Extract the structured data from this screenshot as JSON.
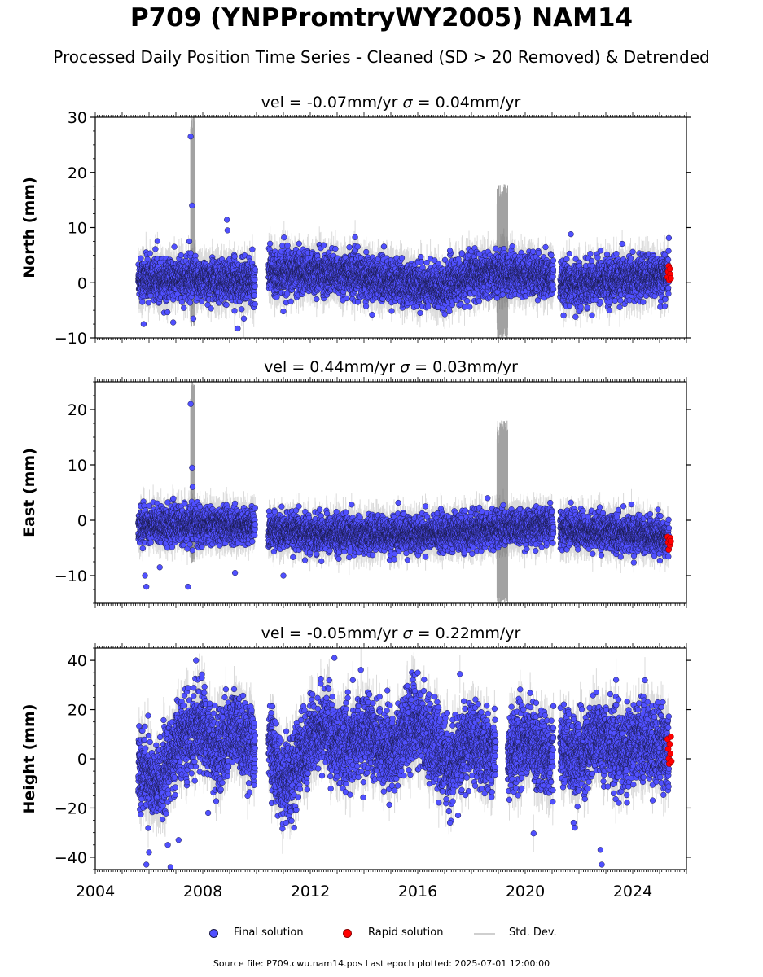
{
  "header": {
    "title": "P709 (YNPPromtryWY2005) NAM14",
    "subtitle": "Processed Daily Position Time Series - Cleaned (SD > 20 Removed) & Detrended"
  },
  "legend": {
    "final": "Final solution",
    "rapid": "Rapid solution",
    "std": "Std. Dev."
  },
  "footer": {
    "text": "Source file: P709.cwu.nam14.pos  Last epoch plotted: 2025-07-01 12:00:00"
  },
  "colors": {
    "final_fill": "#5050ff",
    "final_edge": "#1a1a4a",
    "rapid_fill": "#ff0000",
    "stddev": "#999999"
  },
  "chart_data": [
    {
      "type": "scatter",
      "component": "north",
      "title": "vel = -0.07mm/yr   σ = 0.04mm/yr",
      "vel_label": "vel = -0.07mm/yr",
      "sigma_label": "σ = 0.04mm/yr",
      "ylabel": "North (mm)",
      "ylim": [
        -10,
        30
      ],
      "yticks": [
        -10,
        0,
        10,
        20,
        30
      ],
      "xlim": [
        2004.0,
        2026.0
      ],
      "xticks": [
        2004,
        2008,
        2012,
        2016,
        2020,
        2024
      ],
      "show_xtick_labels": false,
      "segments": [
        [
          2005.6,
          2009.95
        ],
        [
          2010.45,
          2021.05
        ],
        [
          2021.3,
          2025.35
        ]
      ],
      "noise_sd": 1.8,
      "std_dev_typical": 2.5,
      "series": [
        {
          "name": "Final solution",
          "x": [
            2005.75,
            2005.8,
            2006.9,
            2007.5,
            2007.55,
            2007.6,
            2007.65,
            2008.9,
            2008.92,
            2009.3,
            2011.0,
            2012.5,
            2014.3,
            2017.2,
            2018.3,
            2018.9,
            2021.7,
            2022.0,
            2022.8,
            2024.0
          ],
          "y": [
            -3.5,
            -7.5,
            -7.2,
            7.5,
            26.5,
            14.0,
            -6.5,
            11.4,
            9.5,
            -8.3,
            -5.2,
            6.8,
            -5.8,
            5.8,
            5.2,
            6.2,
            8.8,
            -5.2,
            5.8,
            5.6
          ]
        },
        {
          "name": "Rapid solution",
          "x": [
            2025.3,
            2025.32,
            2025.34,
            2025.36,
            2025.38,
            2025.4,
            2025.42
          ],
          "y": [
            1.0,
            2.0,
            3.0,
            0.5,
            2.5,
            1.5,
            0.8
          ]
        }
      ],
      "trend": [
        [
          2005.6,
          0.8
        ],
        [
          2009.95,
          0.2
        ],
        [
          2010.45,
          2.2
        ],
        [
          2013.5,
          1.5
        ],
        [
          2016.0,
          -0.3
        ],
        [
          2017.0,
          -0.8
        ],
        [
          2018.0,
          1.2
        ],
        [
          2019.5,
          1.8
        ],
        [
          2021.05,
          0.8
        ],
        [
          2021.3,
          -0.6
        ],
        [
          2022.5,
          0.2
        ],
        [
          2025.35,
          1.3
        ]
      ],
      "noise_spikes": [
        {
          "x": [
            2018.95,
            2019.35
          ],
          "ylim": [
            -10,
            18
          ]
        },
        {
          "x": [
            2007.55,
            2007.7
          ],
          "ylim": [
            -8,
            30
          ]
        }
      ]
    },
    {
      "type": "scatter",
      "component": "east",
      "title": "vel = 0.44mm/yr   σ = 0.03mm/yr",
      "vel_label": "vel = 0.44mm/yr",
      "sigma_label": "σ = 0.03mm/yr",
      "ylabel": "East (mm)",
      "ylim": [
        -15,
        25
      ],
      "yticks": [
        -10,
        0,
        10,
        20
      ],
      "xlim": [
        2004.0,
        2026.0
      ],
      "xticks": [
        2004,
        2008,
        2012,
        2016,
        2020,
        2024
      ],
      "show_xtick_labels": false,
      "segments": [
        [
          2005.6,
          2009.95
        ],
        [
          2010.45,
          2021.05
        ],
        [
          2021.3,
          2025.35
        ]
      ],
      "noise_sd": 1.5,
      "std_dev_typical": 2.2,
      "series": [
        {
          "name": "Final solution",
          "x": [
            2005.85,
            2005.9,
            2006.4,
            2007.45,
            2007.55,
            2007.6,
            2007.62,
            2009.2,
            2011.0,
            2018.6,
            2019.8,
            2021.7
          ],
          "y": [
            -10.0,
            -12.0,
            -8.5,
            -12.0,
            21.0,
            9.5,
            6.0,
            -9.5,
            -10.0,
            4.0,
            2.0,
            3.2
          ]
        },
        {
          "name": "Rapid solution",
          "x": [
            2025.3,
            2025.32,
            2025.34,
            2025.36,
            2025.38,
            2025.4,
            2025.42
          ],
          "y": [
            -3.0,
            -4.0,
            -5.3,
            -3.5,
            -4.5,
            -3.2,
            -3.8
          ]
        }
      ],
      "trend": [
        [
          2005.6,
          -0.8
        ],
        [
          2009.95,
          -1.0
        ],
        [
          2010.45,
          -2.0
        ],
        [
          2014.0,
          -2.6
        ],
        [
          2017.0,
          -2.4
        ],
        [
          2019.0,
          -1.5
        ],
        [
          2021.05,
          -1.0
        ],
        [
          2021.3,
          -1.5
        ],
        [
          2023.0,
          -2.2
        ],
        [
          2025.35,
          -3.0
        ]
      ],
      "noise_spikes": [
        {
          "x": [
            2018.95,
            2019.35
          ],
          "ylim": [
            -15,
            18
          ]
        },
        {
          "x": [
            2007.55,
            2007.7
          ],
          "ylim": [
            -8,
            25
          ]
        }
      ]
    },
    {
      "type": "scatter",
      "component": "height",
      "title": "vel = -0.05mm/yr   σ = 0.22mm/yr",
      "vel_label": "vel = -0.05mm/yr",
      "sigma_label": "σ = 0.22mm/yr",
      "ylabel": "Height (mm)",
      "ylim": [
        -45,
        45
      ],
      "yticks": [
        -40,
        -20,
        0,
        20,
        40
      ],
      "xlim": [
        2004.0,
        2026.0
      ],
      "xticks": [
        2004,
        2008,
        2012,
        2016,
        2020,
        2024
      ],
      "show_xtick_labels": true,
      "segments": [
        [
          2005.6,
          2009.95
        ],
        [
          2010.45,
          2018.9
        ],
        [
          2019.35,
          2021.05
        ],
        [
          2021.3,
          2025.35
        ]
      ],
      "noise_sd": 7.5,
      "std_dev_typical": 7.0,
      "series": [
        {
          "name": "Final solution",
          "x": [
            2005.9,
            2006.0,
            2006.7,
            2006.8,
            2007.1,
            2007.75,
            2008.2,
            2011.1,
            2011.4,
            2012.9,
            2016.0,
            2017.2,
            2017.5,
            2021.8,
            2021.85,
            2022.8,
            2022.85
          ],
          "y": [
            -43.0,
            -38.0,
            -35.0,
            -44.0,
            -33.0,
            40.0,
            -22.0,
            -26.0,
            -28.0,
            41.0,
            35.0,
            -26.0,
            -23.0,
            -26.0,
            -28.0,
            -37.0,
            -43.0
          ]
        },
        {
          "name": "Rapid solution",
          "x": [
            2025.3,
            2025.32,
            2025.34,
            2025.36,
            2025.38,
            2025.4,
            2025.42,
            2025.44
          ],
          "y": [
            8.0,
            4.0,
            0.0,
            -2.0,
            6.0,
            2.0,
            9.0,
            -1.0
          ]
        }
      ],
      "trend": [
        [
          2005.6,
          -2.0
        ],
        [
          2006.3,
          -12.0
        ],
        [
          2007.2,
          8.0
        ],
        [
          2008.0,
          14.0
        ],
        [
          2008.5,
          2.0
        ],
        [
          2009.2,
          12.0
        ],
        [
          2009.95,
          4.0
        ],
        [
          2010.45,
          8.0
        ],
        [
          2011.0,
          -12.0
        ],
        [
          2011.6,
          0.0
        ],
        [
          2012.4,
          14.0
        ],
        [
          2013.1,
          4.0
        ],
        [
          2014.0,
          10.0
        ],
        [
          2015.0,
          3.0
        ],
        [
          2015.8,
          15.0
        ],
        [
          2016.5,
          8.0
        ],
        [
          2017.2,
          -4.0
        ],
        [
          2017.9,
          8.0
        ],
        [
          2018.6,
          2.0
        ],
        [
          2018.9,
          4.0
        ],
        [
          2019.35,
          2.0
        ],
        [
          2020.0,
          8.0
        ],
        [
          2021.05,
          0.0
        ],
        [
          2021.3,
          6.0
        ],
        [
          2022.0,
          0.0
        ],
        [
          2022.8,
          10.0
        ],
        [
          2023.5,
          2.0
        ],
        [
          2024.2,
          8.0
        ],
        [
          2025.35,
          4.0
        ]
      ],
      "noise_spikes": []
    }
  ]
}
